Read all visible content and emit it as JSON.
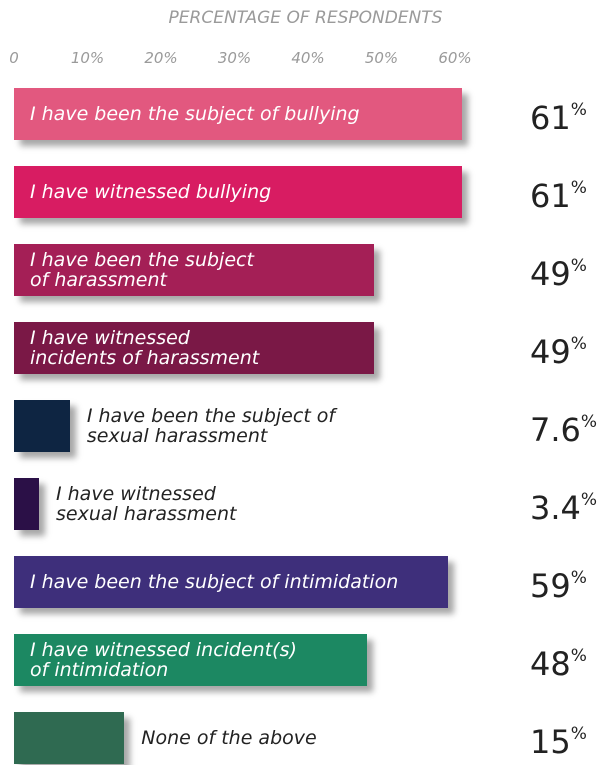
{
  "chart_data": {
    "type": "bar",
    "orientation": "horizontal",
    "x_label": "PERCENTAGE OF RESPONDENTS",
    "categories": [
      "I have been the subject of bullying",
      "I have witnessed bullying",
      "I have been the subject\nof harassment",
      "I have witnessed\nincidents of harassment",
      "I have been the subject of\nsexual harassment",
      "I have witnessed\nsexual harassment",
      "I have been the subject of intimidation",
      "I have witnessed incident(s)\nof intimidation",
      "None of the above"
    ],
    "values": [
      61,
      61,
      49,
      49,
      7.6,
      3.4,
      59,
      48,
      15
    ],
    "value_labels": [
      "61%",
      "61%",
      "49%",
      "49%",
      "7.6%",
      "3.4%",
      "59%",
      "48%",
      "15%"
    ],
    "colors": [
      "#e2587f",
      "#d81c62",
      "#a41f56",
      "#7a1846",
      "#0e2542",
      "#2b1047",
      "#3e2f7b",
      "#1c8862",
      "#2f6a51"
    ],
    "xlim": [
      0,
      60
    ],
    "xticks": [
      0,
      {
        "value": 10,
        "label": "10%"
      },
      {
        "value": 20,
        "label": "20%"
      },
      {
        "value": 30,
        "label": "30%"
      },
      {
        "value": 40,
        "label": "40%"
      },
      {
        "value": 50,
        "label": "50%"
      },
      {
        "value": 60,
        "label": "60%"
      }
    ]
  }
}
